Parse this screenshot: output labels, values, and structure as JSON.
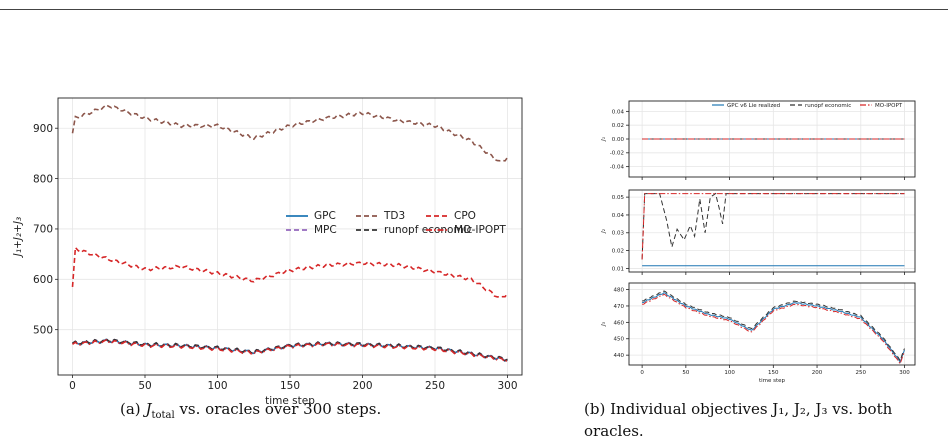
{
  "figure_a": {
    "caption_label": "(a)",
    "caption_rest": "vs. oracles over 300 steps.",
    "caption_math": "J",
    "caption_sub": "total"
  },
  "figure_b": {
    "caption_line1": "(b) Individual objectives J₁, J₂, J₃ vs. both",
    "caption_line2": "oracles."
  },
  "chart_data": [
    {
      "type": "line",
      "title": "",
      "xlabel": "time step",
      "ylabel": "J₁+J₂+J₃",
      "xlim": [
        -10,
        310
      ],
      "ylim": [
        410,
        960
      ],
      "xticks": [
        0,
        50,
        100,
        150,
        200,
        250,
        300
      ],
      "yticks": [
        500,
        600,
        700,
        800,
        900
      ],
      "grid": true,
      "legend_position": "center-right",
      "series": [
        {
          "name": "GPC",
          "color": "#1f77b4",
          "dash": "solid",
          "x": [
            0,
            25,
            50,
            75,
            100,
            125,
            150,
            175,
            200,
            225,
            250,
            275,
            300
          ],
          "y": [
            472,
            478,
            470,
            468,
            463,
            455,
            468,
            472,
            470,
            467,
            463,
            452,
            440
          ]
        },
        {
          "name": "TD3",
          "color": "#8c564b",
          "dash": "dashed",
          "x": [
            0,
            2,
            25,
            50,
            75,
            100,
            125,
            150,
            175,
            200,
            225,
            250,
            275,
            295,
            300
          ],
          "y": [
            890,
            920,
            945,
            920,
            905,
            905,
            880,
            905,
            920,
            930,
            915,
            905,
            875,
            832,
            842
          ]
        },
        {
          "name": "CPO",
          "color": "#d62728",
          "dash": "dashed",
          "x": [
            0,
            2,
            25,
            50,
            75,
            100,
            125,
            150,
            175,
            200,
            225,
            250,
            275,
            295,
            300
          ],
          "y": [
            585,
            660,
            640,
            620,
            625,
            612,
            597,
            618,
            628,
            632,
            628,
            615,
            600,
            562,
            572
          ]
        },
        {
          "name": "MPC",
          "color": "#9467bd",
          "dash": "dashed",
          "x": [
            0,
            25,
            50,
            75,
            100,
            125,
            150,
            175,
            200,
            225,
            250,
            275,
            300
          ],
          "y": [
            473,
            479,
            471,
            469,
            464,
            456,
            469,
            473,
            471,
            468,
            464,
            453,
            441
          ]
        },
        {
          "name": "runopf economic",
          "color": "#333333",
          "dash": "dashed",
          "x": [
            0,
            25,
            50,
            75,
            100,
            125,
            150,
            175,
            200,
            225,
            250,
            275,
            300
          ],
          "y": [
            473,
            479,
            471,
            469,
            464,
            456,
            469,
            473,
            471,
            468,
            464,
            453,
            441
          ]
        },
        {
          "name": "MO-IPOPT",
          "color": "#d62728",
          "dash": "dashdot",
          "x": [
            0,
            25,
            50,
            75,
            100,
            125,
            150,
            175,
            200,
            225,
            250,
            275,
            300
          ],
          "y": [
            471,
            477,
            469,
            467,
            462,
            454,
            467,
            471,
            469,
            466,
            462,
            451,
            439
          ]
        }
      ]
    },
    {
      "type": "line",
      "title": "",
      "xlabel": "",
      "ylabel": "J₁",
      "ylim": [
        -0.055,
        0.055
      ],
      "yticks": [
        "0.04",
        "0.02",
        "0.00",
        "-0.02",
        "-0.04"
      ],
      "grid": true,
      "legend_position": "top",
      "series": [
        {
          "name": "GPC v6 Lie realized",
          "color": "#1f77b4",
          "dash": "solid",
          "x": [
            0,
            300
          ],
          "y": [
            0,
            0
          ]
        },
        {
          "name": "runopf economic",
          "color": "#333333",
          "dash": "dashed",
          "x": [
            0,
            300
          ],
          "y": [
            0,
            0
          ]
        },
        {
          "name": "MO-IPOPT",
          "color": "#d62728",
          "dash": "dashdot",
          "x": [
            0,
            300
          ],
          "y": [
            0,
            0
          ]
        }
      ]
    },
    {
      "type": "line",
      "title": "",
      "xlabel": "",
      "ylabel": "J₂",
      "ylim": [
        0.008,
        0.054
      ],
      "yticks": [
        "0.05",
        "0.04",
        "0.03",
        "0.02",
        "0.01"
      ],
      "grid": true,
      "series": [
        {
          "name": "GPC v6 Lie realized",
          "color": "#1f77b4",
          "dash": "solid",
          "x": [
            0,
            300
          ],
          "y": [
            0.0115,
            0.0115
          ]
        },
        {
          "name": "runopf economic",
          "color": "#333333",
          "dash": "dashed",
          "x": [
            0,
            3,
            20,
            28,
            34,
            40,
            48,
            55,
            60,
            66,
            72,
            78,
            84,
            88,
            92,
            96,
            102,
            300
          ],
          "y": [
            0.015,
            0.052,
            0.052,
            0.037,
            0.022,
            0.032,
            0.026,
            0.034,
            0.028,
            0.049,
            0.03,
            0.05,
            0.052,
            0.044,
            0.035,
            0.052,
            0.052,
            0.052
          ]
        },
        {
          "name": "MO-IPOPT",
          "color": "#d62728",
          "dash": "dashdot",
          "x": [
            0,
            3,
            300
          ],
          "y": [
            0.015,
            0.052,
            0.052
          ]
        }
      ]
    },
    {
      "type": "line",
      "title": "",
      "xlabel": "time step",
      "ylabel": "J₃",
      "xlim": [
        -15,
        312
      ],
      "ylim": [
        434,
        484
      ],
      "xticks": [
        0,
        50,
        100,
        150,
        200,
        250,
        300
      ],
      "yticks": [
        480,
        470,
        460,
        450,
        440
      ],
      "grid": true,
      "series": [
        {
          "name": "GPC v6 Lie realized",
          "color": "#1f77b4",
          "dash": "solid",
          "x": [
            0,
            25,
            50,
            75,
            100,
            125,
            150,
            175,
            200,
            225,
            250,
            275,
            295,
            300
          ],
          "y": [
            472,
            478,
            470,
            465,
            462,
            455,
            468,
            472,
            470,
            467,
            463,
            450,
            436,
            443
          ]
        },
        {
          "name": "runopf economic",
          "color": "#333333",
          "dash": "dashed",
          "x": [
            0,
            25,
            50,
            75,
            100,
            125,
            150,
            175,
            200,
            225,
            250,
            275,
            295,
            300
          ],
          "y": [
            473,
            479,
            471,
            466,
            463,
            456,
            469,
            473,
            471,
            468,
            464,
            451,
            437,
            444
          ]
        },
        {
          "name": "MO-IPOPT",
          "color": "#d62728",
          "dash": "dashdot",
          "x": [
            0,
            25,
            50,
            75,
            100,
            125,
            150,
            175,
            200,
            225,
            250,
            275,
            295,
            300
          ],
          "y": [
            471,
            477,
            469,
            464,
            461,
            454,
            467,
            471,
            469,
            466,
            462,
            449,
            435,
            442
          ]
        }
      ]
    }
  ]
}
